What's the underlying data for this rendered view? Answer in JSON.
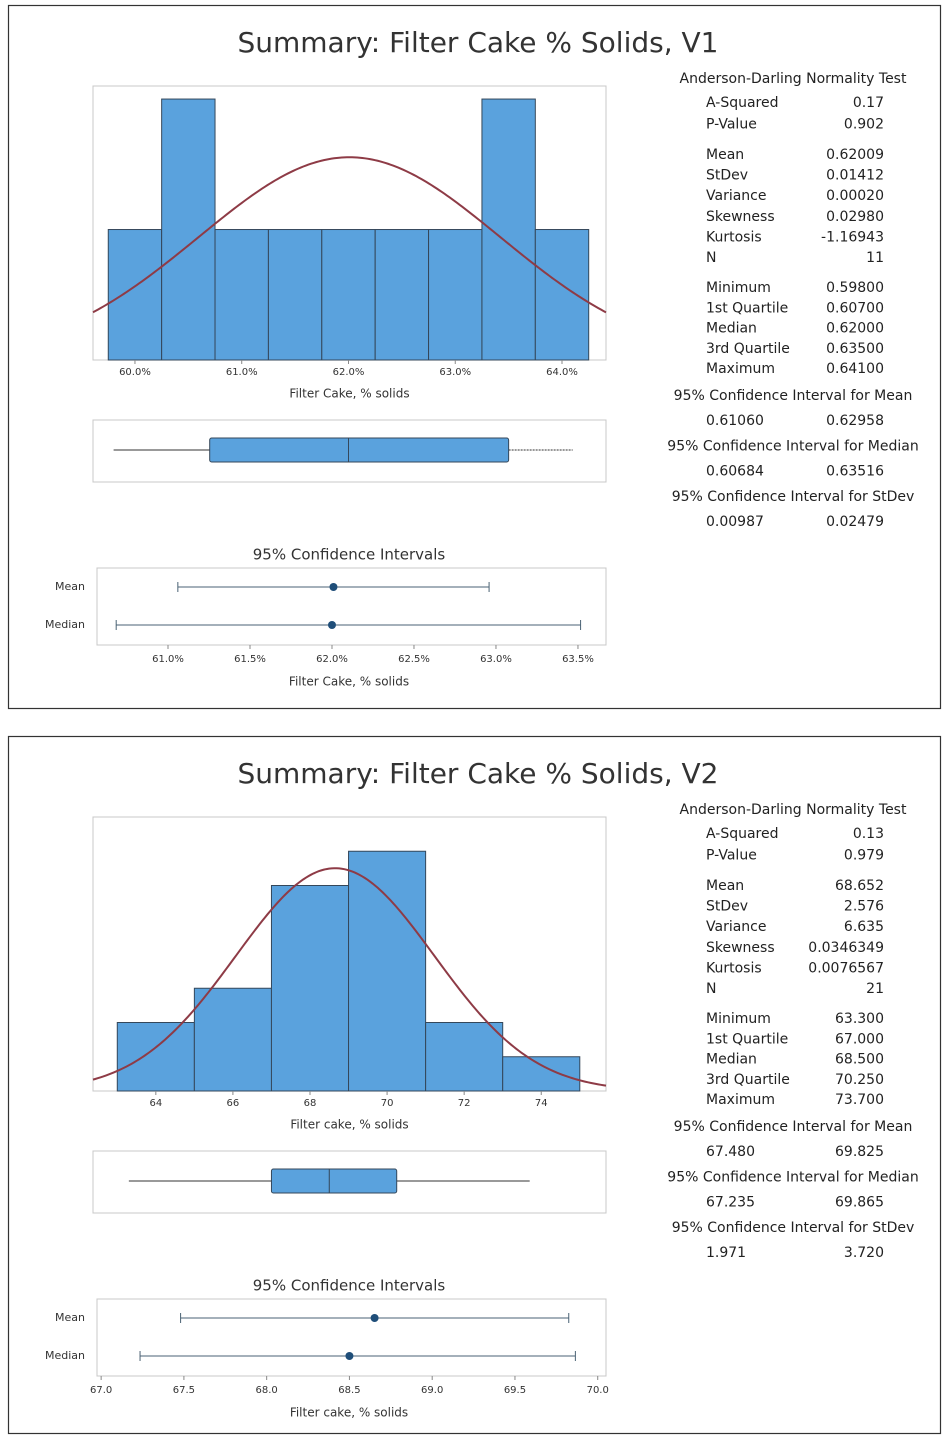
{
  "chart_data": [
    {
      "type": "summary",
      "title": "Summary: Filter Cake % Solids, V1",
      "bar_color": "#5aa2dd",
      "curve_color": "#8e3b46",
      "histogram": {
        "bins": [
          0.5975,
          0.6025,
          0.6075,
          0.6125,
          0.6175,
          0.6225,
          0.6275,
          0.6325,
          0.6375,
          0.6425
        ],
        "counts": [
          1,
          2,
          1,
          1,
          1,
          1,
          1,
          2,
          1
        ],
        "xlim": [
          0.59607,
          0.64412
        ],
        "ylim": [
          0,
          2.1
        ],
        "xticks": [
          {
            "value": 0.6,
            "label": "60.0%"
          },
          {
            "value": 0.61,
            "label": "61.0%"
          },
          {
            "value": 0.62,
            "label": "62.0%"
          },
          {
            "value": 0.63,
            "label": "63.0%"
          },
          {
            "value": 0.64,
            "label": "64.0%"
          }
        ],
        "xlabel": "Filter Cake, % solids"
      },
      "test_title": "Anderson-Darling Normality Test",
      "stats": [
        [
          {
            "label": "A-Squared",
            "value": 0.17
          },
          {
            "label": "P-Value",
            "value": 0.902
          }
        ],
        [
          {
            "label": "Mean",
            "value": 0.62009
          },
          {
            "label": "StDev",
            "value": 0.01412
          },
          {
            "label": "Variance",
            "value": 0.0002,
            "value_label": "0.00020"
          },
          {
            "label": "Skewness",
            "value": 0.0298,
            "value_label": "0.02980"
          },
          {
            "label": "Kurtosis",
            "value": -1.16943
          },
          {
            "label": "N",
            "value": 11
          }
        ],
        [
          {
            "label": "Minimum",
            "value": 0.598,
            "value_label": "0.59800"
          },
          {
            "label": "1st Quartile",
            "value": 0.607,
            "value_label": "0.60700"
          },
          {
            "label": "Median",
            "value": 0.62,
            "value_label": "0.62000"
          },
          {
            "label": "3rd Quartile",
            "value": 0.635,
            "value_label": "0.63500"
          },
          {
            "label": "Maximum",
            "value": 0.641,
            "value_label": "0.64100"
          }
        ]
      ],
      "intervals": [
        {
          "title": "95% Confidence Interval for Mean",
          "values": [
            0.6106,
            0.62958
          ],
          "value_labels": [
            "0.61060",
            "0.62958"
          ]
        },
        {
          "title": "95% Confidence Interval for Median",
          "values": [
            0.60684,
            0.63516
          ],
          "value_labels": [
            "0.60684",
            "0.63516"
          ]
        },
        {
          "title": "95% Confidence Interval for StDev",
          "values": [
            0.00987,
            0.02479
          ],
          "value_labels": [
            "0.00987",
            "0.02479"
          ]
        }
      ],
      "ci": {
        "title": "95% Confidence Intervals",
        "rows": [
          "Mean",
          "Median"
        ],
        "xlim": [
          0.60567,
          0.63671
        ],
        "xticks": [
          {
            "value": 0.61,
            "label": "61.0%"
          },
          {
            "value": 0.615,
            "label": "61.5%"
          },
          {
            "value": 0.62,
            "label": "62.0%"
          },
          {
            "value": 0.625,
            "label": "62.5%"
          },
          {
            "value": 0.63,
            "label": "63.0%"
          },
          {
            "value": 0.635,
            "label": "63.5%"
          }
        ],
        "xlabel": "Filter Cake, % solids"
      }
    },
    {
      "type": "summary",
      "title": "Summary: Filter Cake % Solids, V2",
      "bar_color": "#5aa2dd",
      "curve_color": "#8e3b46",
      "histogram": {
        "bins": [
          63,
          65,
          67,
          69,
          71,
          73,
          75
        ],
        "counts": [
          2,
          3,
          6,
          7,
          2,
          1
        ],
        "xlim": [
          62.37,
          75.68
        ],
        "ylim": [
          0,
          8
        ],
        "xticks": [
          64,
          66,
          68,
          70,
          72,
          74
        ],
        "xlabel": "Filter cake, % solids"
      },
      "test_title": "Anderson-Darling Normality Test",
      "stats": [
        [
          {
            "label": "A-Squared",
            "value": 0.13
          },
          {
            "label": "P-Value",
            "value": 0.979
          }
        ],
        [
          {
            "label": "Mean",
            "value": 68.652
          },
          {
            "label": "StDev",
            "value": 2.576
          },
          {
            "label": "Variance",
            "value": 6.635
          },
          {
            "label": "Skewness",
            "value": 0.0346349
          },
          {
            "label": "Kurtosis",
            "value": 0.0076567
          },
          {
            "label": "N",
            "value": 21
          }
        ],
        [
          {
            "label": "Minimum",
            "value": 63.3,
            "value_label": "63.300"
          },
          {
            "label": "1st Quartile",
            "value": 67,
            "value_label": "67.000"
          },
          {
            "label": "Median",
            "value": 68.5,
            "value_label": "68.500"
          },
          {
            "label": "3rd Quartile",
            "value": 70.25,
            "value_label": "70.250"
          },
          {
            "label": "Maximum",
            "value": 73.7,
            "value_label": "73.700"
          }
        ]
      ],
      "intervals": [
        {
          "title": "95% Confidence Interval for Mean",
          "values": [
            67.48,
            69.825
          ],
          "value_labels": [
            "67.480",
            "69.825"
          ]
        },
        {
          "title": "95% Confidence Interval for Median",
          "values": [
            67.235,
            69.865
          ]
        },
        {
          "title": "95% Confidence Interval for StDev",
          "values": [
            1.971,
            3.72
          ],
          "value_labels": [
            "1.971",
            "3.720"
          ]
        }
      ],
      "ci": {
        "title": "95% Confidence Intervals",
        "rows": [
          "Mean",
          "Median"
        ],
        "xlim": [
          66.975,
          70.05
        ],
        "xticks": [
          {
            "value": 67,
            "label": "67.0"
          },
          {
            "value": 67.5,
            "label": "67.5"
          },
          {
            "value": 68,
            "label": "68.0"
          },
          {
            "value": 68.5,
            "label": "68.5"
          },
          {
            "value": 69,
            "label": "69.0"
          },
          {
            "value": 69.5,
            "label": "69.5"
          },
          {
            "value": 70,
            "label": "70.0"
          }
        ],
        "xlabel": "Filter cake, % solids"
      }
    }
  ]
}
